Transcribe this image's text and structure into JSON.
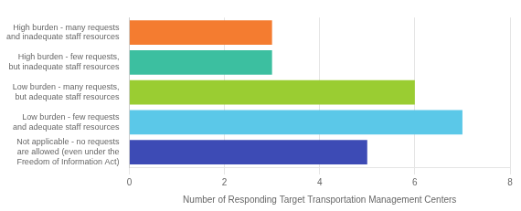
{
  "chart_data": {
    "type": "bar",
    "orientation": "horizontal",
    "categories": [
      "High burden - many requests\nand inadequate staff resources",
      "High burden - few requests,\nbut inadequate staff resources",
      "Low burden - many requests,\nbut adequate staff resources",
      "Low burden - few requests\nand adequate staff resources",
      "Not applicable - no requests\nare allowed (even under the\nFreedom of Information Act)"
    ],
    "values": [
      3,
      3,
      6,
      7,
      5
    ],
    "colors": [
      "#F47C30",
      "#3CBFA0",
      "#9ACD32",
      "#5BC8E8",
      "#3D4BB5"
    ],
    "xlabel": "Number of Responding Target Transportation Management Centers",
    "xlim": [
      0,
      8
    ],
    "xticks": [
      0,
      2,
      4,
      6,
      8
    ],
    "grid": true
  }
}
